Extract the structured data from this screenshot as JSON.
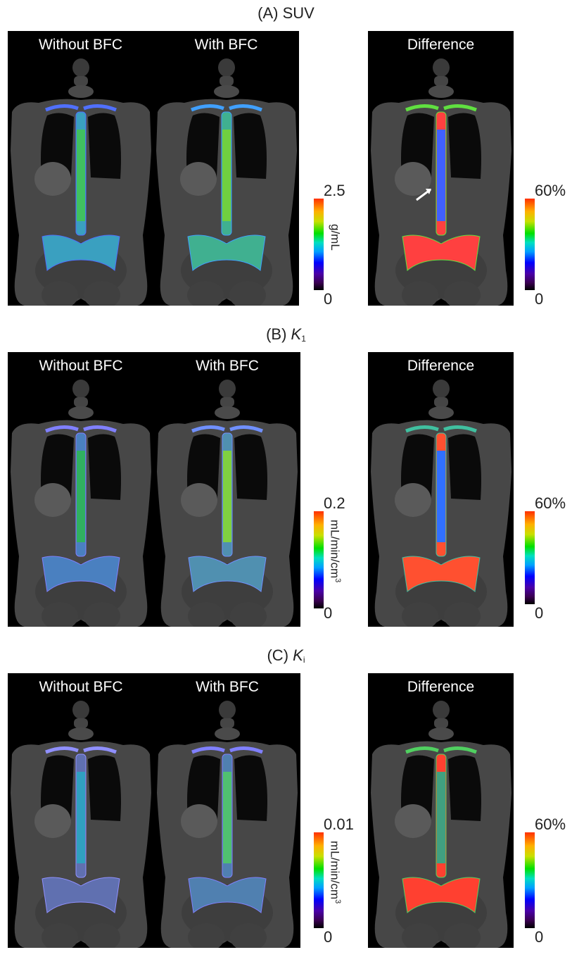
{
  "sections": [
    {
      "title": "(A) SUV",
      "panels": {
        "left": "Without BFC",
        "middle": "With BFC",
        "right": "Difference"
      },
      "colorbar": {
        "max": "2.5",
        "min": "0",
        "unit": "g/mL"
      },
      "diff_colorbar": {
        "max": "60%",
        "min": "0"
      }
    },
    {
      "title_prefix": "(B) ",
      "title_var": "K",
      "title_sub": "1",
      "panels": {
        "left": "Without BFC",
        "middle": "With BFC",
        "right": "Difference"
      },
      "colorbar": {
        "max": "0.2",
        "min": "0",
        "unit": "mL/min/cm",
        "unit_sup": "3"
      },
      "diff_colorbar": {
        "max": "60%",
        "min": "0"
      }
    },
    {
      "title_prefix": "(C) ",
      "title_var": "K",
      "title_sub": "i",
      "panels": {
        "left": "Without BFC",
        "middle": "With BFC",
        "right": "Difference"
      },
      "colorbar": {
        "max": "0.01",
        "min": "0",
        "unit": "mL/min/cm",
        "unit_sup": "3"
      },
      "diff_colorbar": {
        "max": "60%",
        "min": "0"
      }
    }
  ],
  "colors": {
    "background": "#ffffff",
    "panel_bg": "#000000",
    "body": "#4a4a4a",
    "spine_low": "#3040ff",
    "spine_high": "#30d040",
    "diff_high": "#ff3020"
  }
}
